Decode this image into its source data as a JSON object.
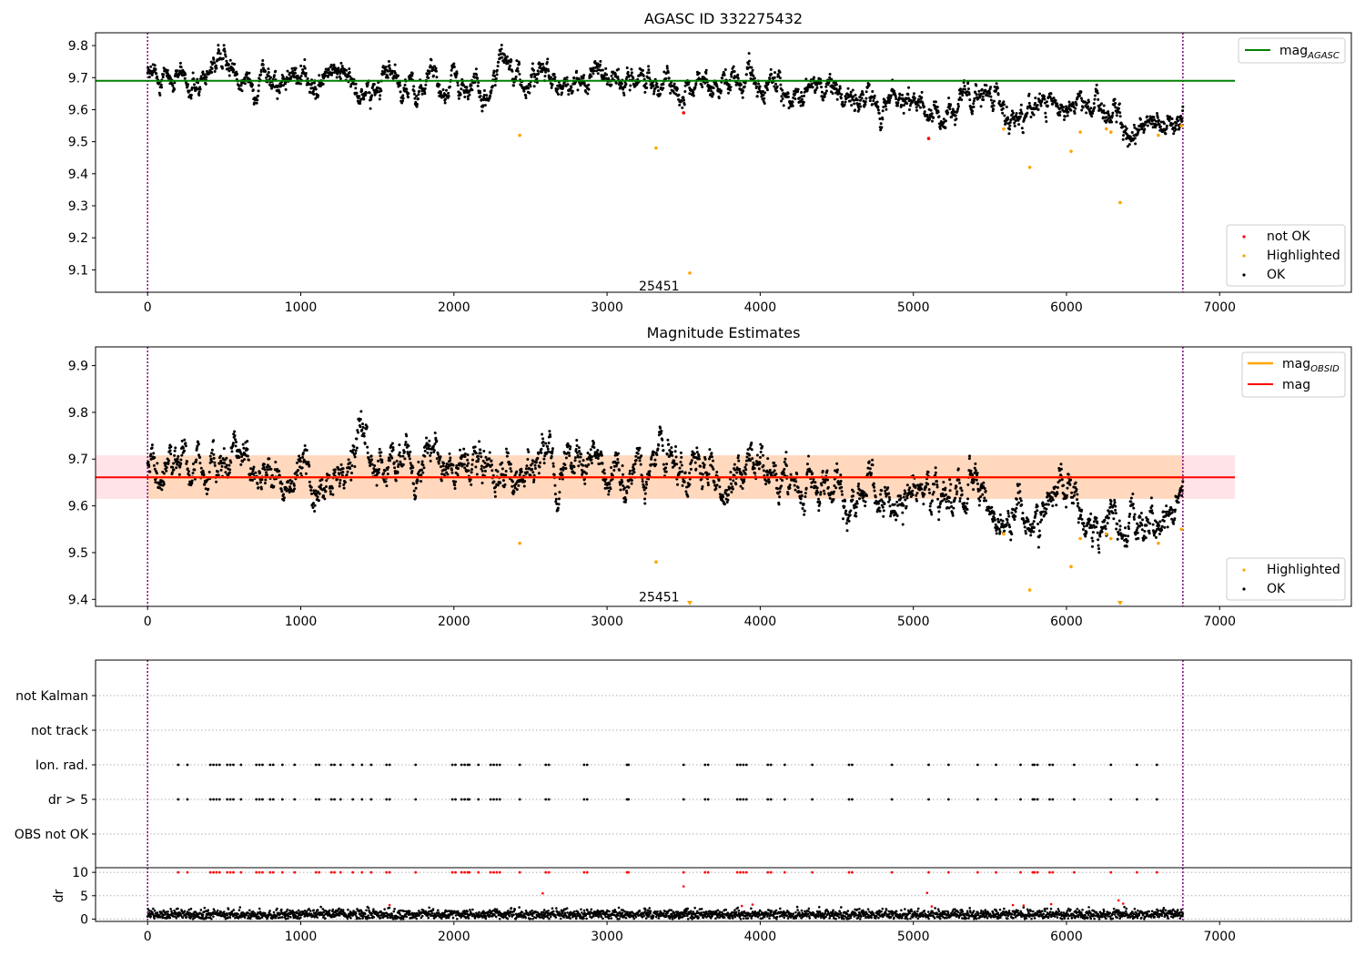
{
  "window": {
    "title": "AGASC ID 332275432"
  },
  "colors": {
    "ok": "#000000",
    "not_ok": "#ff0000",
    "highlighted": "#ffa500",
    "agasc_line": "#008000",
    "obsid_line": "#ffa500",
    "mag_line": "#ff0000",
    "band_fill": "#ffc0cb",
    "obs_boundary": "#800080",
    "grid": "#b0b0b0"
  },
  "chart_data": [
    {
      "type": "scatter",
      "title": "AGASC ID 332275432",
      "xlim": [
        -340,
        7860
      ],
      "ylim": [
        9.03,
        9.84
      ],
      "x_ticks": [
        "0",
        "1000",
        "2000",
        "3000",
        "4000",
        "5000",
        "6000",
        "7000"
      ],
      "y_ticks": [
        "9.1",
        "9.2",
        "9.3",
        "9.4",
        "9.5",
        "9.6",
        "9.7",
        "9.8"
      ],
      "hlines": [
        {
          "name": "mag",
          "subscript": "AGASC",
          "y": 9.69,
          "x_end": 7100
        }
      ],
      "obs_boundaries": [
        0,
        6760
      ],
      "annotations": [
        {
          "text": "25451",
          "x": 3340,
          "y": 9.05
        }
      ],
      "legend_lines": [
        {
          "name": "mag",
          "subscript": "AGASC"
        }
      ],
      "legend_points": [
        "not OK",
        "Highlighted",
        "OK"
      ],
      "series": [
        {
          "name": "not OK",
          "points": [
            [
              3500,
              9.59
            ],
            [
              5100,
              9.51
            ]
          ]
        },
        {
          "name": "Highlighted",
          "points": [
            [
              2430,
              9.52
            ],
            [
              3320,
              9.48
            ],
            [
              3540,
              9.09
            ],
            [
              5590,
              9.54
            ],
            [
              5760,
              9.42
            ],
            [
              6030,
              9.47
            ],
            [
              6090,
              9.53
            ],
            [
              6260,
              9.54
            ],
            [
              6290,
              9.53
            ],
            [
              6350,
              9.31
            ],
            [
              6600,
              9.52
            ],
            [
              6750,
              9.55
            ]
          ]
        },
        {
          "name": "OK",
          "generated": true,
          "x_range": [
            0,
            6760
          ],
          "trend": [
            [
              0,
              9.7
            ],
            [
              1000,
              9.69
            ],
            [
              2000,
              9.69
            ],
            [
              3000,
              9.68
            ],
            [
              4000,
              9.66
            ],
            [
              4600,
              9.64
            ],
            [
              5000,
              9.63
            ],
            [
              5300,
              9.62
            ],
            [
              5600,
              9.6
            ],
            [
              6000,
              9.6
            ],
            [
              6400,
              9.59
            ],
            [
              6760,
              9.58
            ]
          ]
        }
      ]
    },
    {
      "type": "scatter",
      "title": "Magnitude Estimates",
      "xlim": [
        -340,
        7860
      ],
      "ylim": [
        9.385,
        9.94
      ],
      "x_ticks": [
        "0",
        "1000",
        "2000",
        "3000",
        "4000",
        "5000",
        "6000",
        "7000"
      ],
      "y_ticks": [
        "9.4",
        "9.5",
        "9.6",
        "9.7",
        "9.8",
        "9.9"
      ],
      "band": {
        "y_low": 9.615,
        "y_high": 9.708,
        "x_start": -340,
        "x_end": 7100
      },
      "obsid_band": {
        "y_low": 9.615,
        "y_high": 9.708,
        "x_start": 0,
        "x_end": 6760
      },
      "hlines": [
        {
          "name": "mag_OBSID",
          "y": 9.661,
          "x_start": 0,
          "x_end": 6760
        },
        {
          "name": "mag",
          "y": 9.661,
          "x_start": -340,
          "x_end": 7100
        }
      ],
      "obs_boundaries": [
        0,
        6760
      ],
      "annotations": [
        {
          "text": "25451",
          "x": 3340,
          "y": 9.405
        }
      ],
      "legend_lines": [
        {
          "name": "mag",
          "subscript": "OBSID"
        },
        {
          "name": "mag",
          "subscript": ""
        }
      ],
      "legend_points": [
        "Highlighted",
        "OK"
      ],
      "series": [
        {
          "name": "Highlighted",
          "points": [
            [
              2430,
              9.52
            ],
            [
              3320,
              9.48
            ],
            [
              5590,
              9.54
            ],
            [
              5760,
              9.42
            ],
            [
              6030,
              9.47
            ],
            [
              6090,
              9.53
            ],
            [
              6260,
              9.54
            ],
            [
              6290,
              9.53
            ],
            [
              6600,
              9.52
            ],
            [
              6750,
              9.55
            ]
          ]
        },
        {
          "name": "Highlighted (clipped)",
          "marker": "triangle-down",
          "points": [
            [
              3540,
              9.39
            ],
            [
              6350,
              9.39
            ]
          ]
        },
        {
          "name": "OK",
          "generated": true,
          "x_range": [
            0,
            6760
          ],
          "trend": [
            [
              0,
              9.7
            ],
            [
              1000,
              9.69
            ],
            [
              2000,
              9.69
            ],
            [
              3000,
              9.68
            ],
            [
              4000,
              9.66
            ],
            [
              4600,
              9.64
            ],
            [
              5000,
              9.63
            ],
            [
              5300,
              9.62
            ],
            [
              5600,
              9.6
            ],
            [
              6000,
              9.6
            ],
            [
              6400,
              9.59
            ],
            [
              6760,
              9.58
            ]
          ]
        }
      ]
    },
    {
      "type": "scatter",
      "title": "",
      "xlim": [
        -340,
        7860
      ],
      "categories": [
        "not Kalman",
        "not track",
        "Ion. rad.",
        "dr > 5",
        "OBS not OK"
      ],
      "obs_boundaries": [
        0,
        6760
      ],
      "flag_times": [
        200,
        260,
        410,
        430,
        450,
        470,
        520,
        540,
        560,
        610,
        710,
        730,
        750,
        800,
        820,
        880,
        960,
        1100,
        1120,
        1200,
        1220,
        1260,
        1340,
        1400,
        1460,
        1560,
        1580,
        1750,
        1990,
        2010,
        2050,
        2070,
        2090,
        2100,
        2160,
        2240,
        2260,
        2280,
        2300,
        2430,
        2600,
        2620,
        2850,
        2870,
        3130,
        3140,
        3500,
        3640,
        3660,
        3850,
        3870,
        3890,
        3910,
        4050,
        4070,
        4160,
        4340,
        4580,
        4600,
        4860,
        5100,
        5230,
        5420,
        5540,
        5700,
        5780,
        5790,
        5810,
        5890,
        5910,
        6050,
        6290,
        6460,
        6590
      ],
      "flag_rows": [
        "Ion. rad.",
        "dr > 5"
      ]
    },
    {
      "type": "scatter",
      "title": "",
      "ylabel": "dr",
      "xlim": [
        -340,
        7860
      ],
      "ylim": [
        -0.5,
        11
      ],
      "x_ticks": [
        "0",
        "1000",
        "2000",
        "3000",
        "4000",
        "5000",
        "6000",
        "7000"
      ],
      "y_ticks": [
        "0",
        "5",
        "10"
      ],
      "clip_value": 10,
      "obs_boundaries": [
        0,
        6760
      ],
      "series": [
        {
          "name": "dr OK",
          "generated": true,
          "x_range": [
            0,
            6760
          ],
          "y_range": [
            0,
            2.6
          ]
        },
        {
          "name": "dr flagged",
          "points": [
            [
              1580,
              3.0
            ],
            [
              2580,
              5.5
            ],
            [
              3500,
              7.0
            ],
            [
              3880,
              2.8
            ],
            [
              3950,
              3.1
            ],
            [
              5090,
              5.6
            ],
            [
              5120,
              2.7
            ],
            [
              5650,
              3.0
            ],
            [
              5720,
              2.9
            ],
            [
              5900,
              3.2
            ],
            [
              6340,
              4.0
            ],
            [
              6370,
              3.3
            ]
          ]
        }
      ]
    }
  ]
}
